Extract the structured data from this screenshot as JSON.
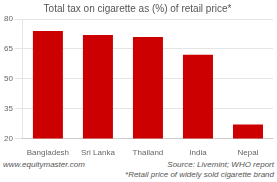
{
  "chart_data": {
    "type": "bar",
    "title": "Total tax on cigarette as (%) of retail price*",
    "categories": [
      "Bangladesh",
      "Sri Lanka",
      "Thailand",
      "India",
      "Nepal"
    ],
    "values": [
      74,
      72,
      71,
      62,
      27
    ],
    "color": "#cc0000",
    "ylim": [
      20,
      80
    ],
    "yticks": [
      20,
      35,
      50,
      65,
      80
    ],
    "grid": true,
    "annotations": [
      "www.equitymaster.com",
      "Source: Livemint; WHO report",
      "*Retail price of widely sold cigarette brand"
    ]
  }
}
